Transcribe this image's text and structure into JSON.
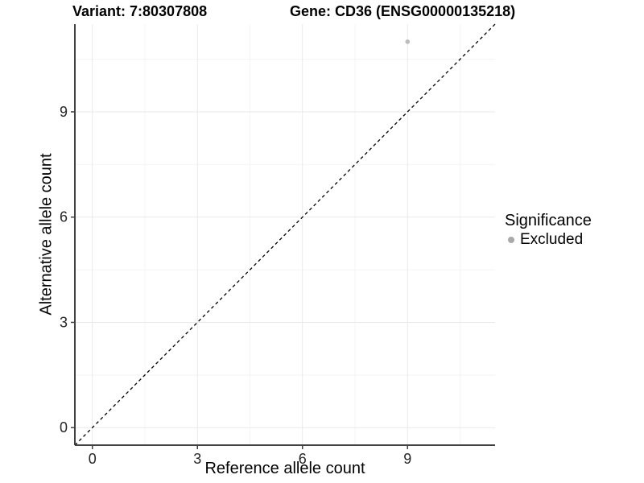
{
  "chart_data": {
    "type": "scatter",
    "title_left": "Variant: 7:80307808",
    "title_right": "Gene: CD36 (ENSG00000135218)",
    "xlabel": "Reference allele count",
    "ylabel": "Alternative allele count",
    "xlim": [
      -0.5,
      11.5
    ],
    "ylim": [
      -0.5,
      11.5
    ],
    "xticks": [
      0,
      3,
      6,
      9
    ],
    "yticks": [
      0,
      3,
      6,
      9
    ],
    "minor_xticks": [
      1.5,
      4.5,
      7.5,
      10.5
    ],
    "minor_yticks": [
      1.5,
      4.5,
      7.5,
      10.5
    ],
    "grid": "on",
    "points": [
      {
        "x": 9,
        "y": 11,
        "series": "Excluded"
      }
    ],
    "identity_line": {
      "equation": "y = x",
      "style": "dashed",
      "color": "#000000"
    },
    "legend": {
      "title": "Significance",
      "position": "right",
      "items": [
        {
          "label": "Excluded",
          "color": "#a9a9a9"
        }
      ]
    },
    "colors": {
      "point": "#bcbcbc",
      "axis": "#404040",
      "tick": "#404040",
      "tick_label": "#262626",
      "grid_major": "#e9e9e9",
      "grid_minor": "#f4f4f4"
    }
  }
}
